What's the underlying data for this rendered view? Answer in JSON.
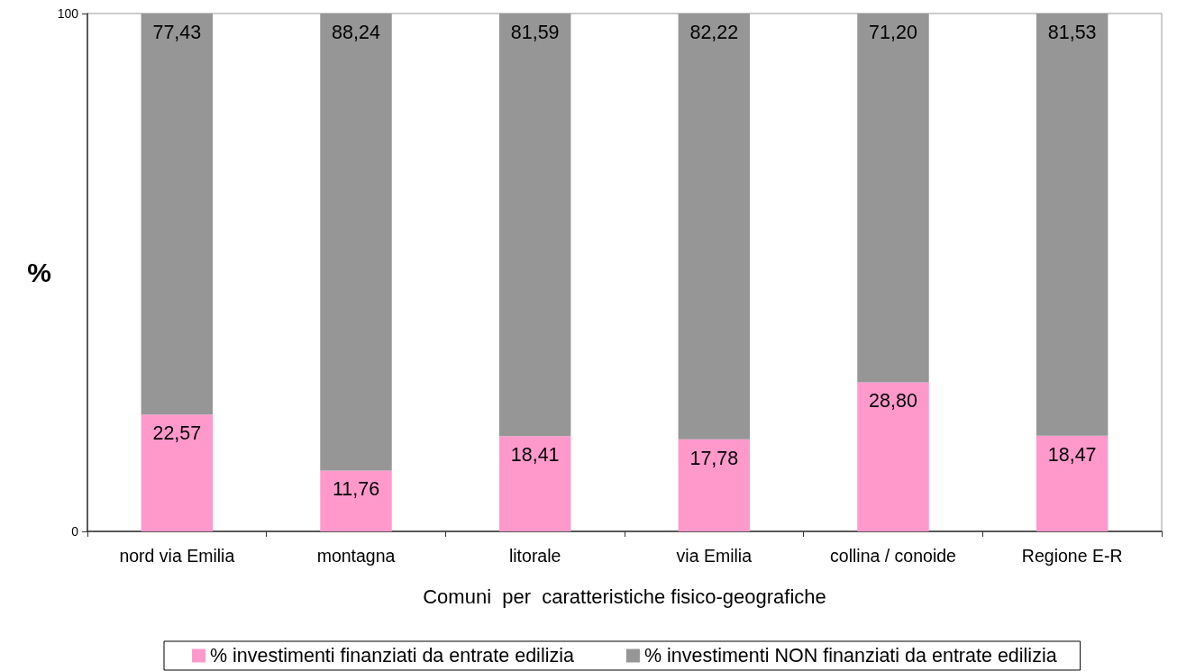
{
  "chart_data": {
    "type": "bar",
    "stacked": true,
    "xlabel": "Comuni  per  caratteristiche fisico-geografiche",
    "ylabel": "%",
    "categories": [
      "nord via Emilia",
      "montagna",
      "litorale",
      "via Emilia",
      "collina / conoide",
      "Regione E-R"
    ],
    "series": [
      {
        "name": "% investimenti finanziati da entrate edilizia",
        "color": "#ff99cc",
        "values": [
          22.57,
          11.76,
          18.41,
          17.78,
          28.8,
          18.47
        ],
        "value_labels": [
          "22,57",
          "11,76",
          "18,41",
          "17,78",
          "28,80",
          "18,47"
        ]
      },
      {
        "name": "% investimenti NON finanziati da entrate edilizia",
        "color": "#969696",
        "values": [
          77.43,
          88.24,
          81.59,
          82.22,
          71.2,
          81.53
        ],
        "value_labels": [
          "77,43",
          "88,24",
          "81,59",
          "82,22",
          "71,20",
          "81,53"
        ]
      }
    ],
    "ylim": [
      0,
      100
    ],
    "yticks": [
      0,
      100
    ],
    "legend": "bottom"
  }
}
